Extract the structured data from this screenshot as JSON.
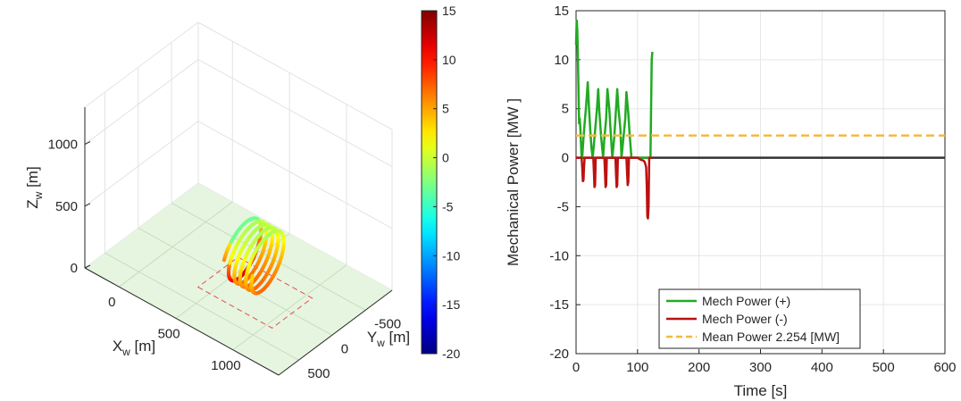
{
  "chart_data": [
    {
      "type": "line3d",
      "xlabel": "X",
      "xlabel_sub": "w",
      "xlabel_unit": " [m]",
      "ylabel": "Y",
      "ylabel_sub": "w",
      "ylabel_unit": " [m]",
      "zlabel": "Z",
      "zlabel_sub": "w",
      "zlabel_unit": " [m]",
      "x_ticks": [
        "0",
        "500",
        "1000"
      ],
      "y_ticks": [
        "500",
        "0",
        "-500"
      ],
      "z_ticks": [
        "0",
        "500",
        "1000"
      ],
      "xlim": [
        -300,
        1400
      ],
      "ylim": [
        -900,
        800
      ],
      "zlim": [
        0,
        1300
      ],
      "ground_plane_color": "#e6f5df",
      "footprint_color": "#e05050",
      "trajectory": {
        "loops": 5,
        "radius_m": 200,
        "center_x_start_m": 600,
        "center_x_end_m": 850,
        "center_y_m": 0,
        "center_z_m": 300
      },
      "colorbar": {
        "ticks": [
          "15",
          "10",
          "5",
          "0",
          "-5",
          "-10",
          "-15",
          "-20"
        ],
        "range": [
          -20,
          15
        ],
        "colormap": "jet"
      },
      "grid": true
    },
    {
      "type": "line",
      "xlabel": "Time [s]",
      "ylabel": "Mechanical Power [MW ]",
      "xlim": [
        0,
        600
      ],
      "ylim": [
        -20,
        15
      ],
      "x_ticks": [
        "0",
        "100",
        "200",
        "300",
        "400",
        "500",
        "600"
      ],
      "y_ticks": [
        "15",
        "10",
        "5",
        "0",
        "-5",
        "-10",
        "-15",
        "-20"
      ],
      "grid": true,
      "legend_position": "bottom-center",
      "series": [
        {
          "name": "Mech Power (+)",
          "color": "#22aa22",
          "x": [
            0,
            1,
            2,
            3,
            5,
            6,
            7,
            9,
            10,
            12,
            14,
            16,
            19,
            21,
            23,
            25,
            27,
            30,
            32,
            34,
            36,
            38,
            41,
            44,
            46,
            49,
            51,
            54,
            56,
            59,
            62,
            64,
            67,
            69,
            72,
            74,
            77,
            80,
            82,
            85,
            87,
            90,
            93,
            96,
            98,
            100,
            103,
            105,
            108,
            110,
            112,
            115,
            117,
            119,
            121,
            123,
            124
          ],
          "y": [
            11.5,
            14,
            13,
            10,
            3.5,
            4,
            3,
            0,
            0,
            2,
            3.5,
            5,
            7.7,
            5,
            3,
            1,
            0,
            2,
            3.5,
            5,
            7,
            4.5,
            2,
            0,
            2,
            4,
            7,
            5,
            3,
            0,
            2,
            4,
            7,
            5,
            3,
            0,
            2,
            4,
            6.7,
            4.5,
            2.5,
            0,
            0,
            0,
            0,
            0,
            0,
            0,
            0,
            0,
            0,
            0,
            0,
            0,
            0,
            10,
            10.8
          ]
        },
        {
          "name": "Mech Power (-)",
          "color": "#bb1111",
          "x": [
            0,
            9,
            10,
            11,
            12,
            13,
            14,
            28,
            29,
            30,
            31,
            32,
            46,
            47,
            48,
            49,
            50,
            64,
            65,
            66,
            67,
            68,
            82,
            83,
            84,
            85,
            86,
            100,
            105,
            110,
            112,
            114,
            115,
            116,
            117,
            118,
            119,
            124
          ],
          "y": [
            0,
            0,
            -1,
            -2.4,
            -2.3,
            -1,
            0,
            0,
            -1.5,
            -3,
            -2.8,
            0,
            0,
            -1.5,
            -3,
            -2.8,
            0,
            0,
            -1.5,
            -3,
            -2.8,
            0,
            0,
            -1.5,
            -2.8,
            -2.5,
            0,
            0,
            -0.2,
            -0.3,
            -0.5,
            -1,
            -3,
            -6,
            -6.2,
            -5,
            0,
            0
          ]
        },
        {
          "name": "Mean Power 2.254 [MW]",
          "color": "#f6b840",
          "dashed": true,
          "x": [
            0,
            600
          ],
          "y": [
            2.254,
            2.254
          ]
        }
      ],
      "baseline": {
        "y": 0,
        "color": "#333333"
      }
    }
  ]
}
